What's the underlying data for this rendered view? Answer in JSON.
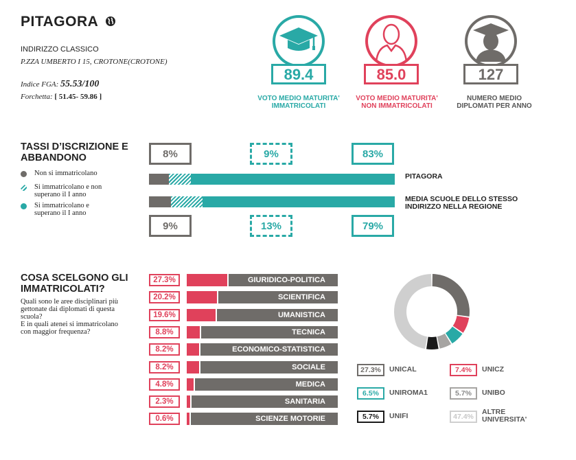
{
  "school": {
    "name": "PITAGORA",
    "type": "INDIRIZZO CLASSICO",
    "address": "P.ZZA UMBERTO I 15, CROTONE(CROTONE)",
    "index_label": "Indice FGA:",
    "index_value": "55.53/100",
    "range_label": "Forchetta:",
    "range_value": "[ 51.45- 59.86 ]"
  },
  "stats": [
    {
      "value": "89.4",
      "label_1": "VOTO MEDIO MATURITA'",
      "label_2": "IMMATRICOLATI",
      "color": "#29a9a6",
      "icon": "graduation-cap-icon"
    },
    {
      "value": "85.0",
      "label_1": "VOTO MEDIO MATURITA'",
      "label_2": "NON IMMATRICOLATI",
      "color": "#e0415b",
      "icon": "person-icon"
    },
    {
      "value": "127",
      "label_1": "NUMERO MEDIO",
      "label_2": "DIPLOMATI PER ANNO",
      "color": "#6f6c69",
      "icon": "graduate-icon"
    }
  ],
  "enrollment": {
    "title_1": "TASSI D’ISCRIZIONE E",
    "title_2": "ABBANDONO",
    "legend": [
      {
        "l1": "Non si immatricolano",
        "l2": "",
        "color": "#6f6c69"
      },
      {
        "l1": "Si immatricolano e non",
        "l2": "superano il I anno",
        "color": "#29a9a6"
      },
      {
        "l1": "Si immatricolano e",
        "l2": "superano il I anno",
        "color": "#29a9a6"
      }
    ],
    "school_label": "PITAGORA",
    "region_label_1": "MEDIA SCUOLE DELLO STESSO",
    "region_label_2": "INDIRIZZO NELLA REGIONE",
    "school_pcts": [
      "8%",
      "9%",
      "83%"
    ],
    "region_pcts": [
      "9%",
      "13%",
      "79%"
    ],
    "school_shares": [
      8,
      9,
      83
    ],
    "region_shares": [
      9,
      13,
      79
    ]
  },
  "choices": {
    "title_1": "COSA SCELGONO GLI",
    "title_2": "IMMATRICOLATI?",
    "q1": "Quali sono le aree disciplinari più",
    "q2": "gettonate dai diplomati di questa",
    "q3": "scuola?",
    "q4": "E in quali atenei si immatricolano",
    "q5": "con maggior frequenza?",
    "areas": [
      {
        "pct": "27.3%",
        "name": "GIURIDICO-POLITICA",
        "value": 27.3
      },
      {
        "pct": "20.2%",
        "name": "SCIENTIFICA",
        "value": 20.2
      },
      {
        "pct": "19.6%",
        "name": "UMANISTICA",
        "value": 19.6
      },
      {
        "pct": "8.8%",
        "name": "TECNICA",
        "value": 8.8
      },
      {
        "pct": "8.2%",
        "name": "ECONOMICO-STATISTICA",
        "value": 8.2
      },
      {
        "pct": "8.2%",
        "name": "SOCIALE",
        "value": 8.2
      },
      {
        "pct": "4.8%",
        "name": "MEDICA",
        "value": 4.8
      },
      {
        "pct": "2.3%",
        "name": "SANITARIA",
        "value": 2.3
      },
      {
        "pct": "0.6%",
        "name": "SCIENZE MOTORIE",
        "value": 0.6
      }
    ]
  },
  "chart_data": {
    "type": "pie",
    "labels": [
      "UNICAL",
      "UNICZ",
      "UNIROMA1",
      "UNIBO",
      "UNIFI",
      "ALTRE UNIVERSITA'"
    ],
    "values": [
      27.3,
      7.4,
      6.5,
      5.7,
      5.7,
      47.4
    ],
    "display": [
      "27.3%",
      "7.4%",
      "6.5%",
      "5.7%",
      "5.7%",
      "47.4%"
    ],
    "colors": [
      "#6f6c69",
      "#e0415b",
      "#29a9a6",
      "#a6a4a2",
      "#1a1a1a",
      "#cfcfcf"
    ]
  }
}
